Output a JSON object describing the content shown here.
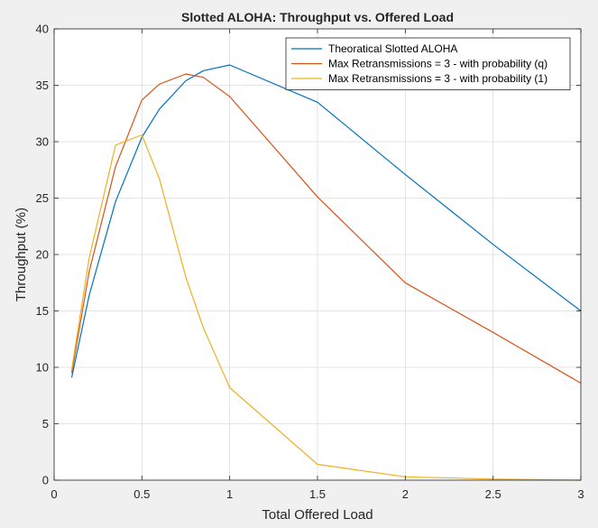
{
  "chart_data": {
    "type": "line",
    "title": "Slotted ALOHA: Throughput vs. Offered Load",
    "xlabel": "Total Offered Load",
    "ylabel": "Throughput (%)",
    "xlim": [
      0,
      3
    ],
    "ylim": [
      0,
      40
    ],
    "xticks": [
      0,
      0.5,
      1,
      1.5,
      2,
      2.5,
      3
    ],
    "yticks": [
      0,
      5,
      10,
      15,
      20,
      25,
      30,
      35,
      40
    ],
    "xtick_labels": [
      "0",
      "0.5",
      "1",
      "1.5",
      "2",
      "2.5",
      "3"
    ],
    "ytick_labels": [
      "0",
      "5",
      "10",
      "15",
      "20",
      "25",
      "30",
      "35",
      "40"
    ],
    "grid": true,
    "legend_position": "top-right",
    "series": [
      {
        "name": "Theoratical Slotted ALOHA",
        "color": "#0072BD",
        "x": [
          0.1,
          0.2,
          0.35,
          0.5,
          0.6,
          0.75,
          0.85,
          1,
          1.5,
          2,
          2.5,
          3
        ],
        "y": [
          9.1,
          16.4,
          24.7,
          30.4,
          32.9,
          35.4,
          36.3,
          36.8,
          33.5,
          27.1,
          20.9,
          15.0
        ]
      },
      {
        "name": "Max Retransmissions = 3 - with probability (q)",
        "color": "#D95319",
        "x": [
          0.1,
          0.2,
          0.35,
          0.5,
          0.6,
          0.75,
          0.85,
          1,
          1.5,
          2,
          2.5,
          3
        ],
        "y": [
          9.5,
          18.5,
          27.8,
          33.7,
          35.1,
          36.0,
          35.7,
          34.0,
          25.1,
          17.5,
          13.1,
          8.6
        ]
      },
      {
        "name": "Max Retransmissions = 3 - with probability (1)",
        "color": "#EDB120",
        "x": [
          0.1,
          0.2,
          0.35,
          0.5,
          0.6,
          0.75,
          0.85,
          1,
          1.5,
          2,
          2.5,
          3
        ],
        "y": [
          9.8,
          19.7,
          29.7,
          30.6,
          26.7,
          18.0,
          13.5,
          8.2,
          1.4,
          0.3,
          0.1,
          0.0
        ]
      }
    ]
  }
}
